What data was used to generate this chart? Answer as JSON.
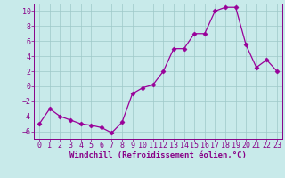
{
  "x": [
    0,
    1,
    2,
    3,
    4,
    5,
    6,
    7,
    8,
    9,
    10,
    11,
    12,
    13,
    14,
    15,
    16,
    17,
    18,
    19,
    20,
    21,
    22,
    23
  ],
  "y": [
    -5.0,
    -3.0,
    -4.0,
    -4.5,
    -5.0,
    -5.2,
    -5.5,
    -6.2,
    -4.8,
    -1.0,
    -0.2,
    0.2,
    2.0,
    5.0,
    5.0,
    7.0,
    7.0,
    10.0,
    10.5,
    10.5,
    5.5,
    2.5,
    3.5,
    2.0
  ],
  "line_color": "#990099",
  "marker": "D",
  "marker_size": 2.5,
  "background_color": "#c8eaea",
  "grid_color": "#9ec8c8",
  "xlabel": "Windchill (Refroidissement éolien,°C)",
  "ylim": [
    -7,
    11
  ],
  "yticks": [
    -6,
    -4,
    -2,
    0,
    2,
    4,
    6,
    8,
    10
  ],
  "xlim": [
    -0.5,
    23.5
  ],
  "xticks": [
    0,
    1,
    2,
    3,
    4,
    5,
    6,
    7,
    8,
    9,
    10,
    11,
    12,
    13,
    14,
    15,
    16,
    17,
    18,
    19,
    20,
    21,
    22,
    23
  ],
  "tick_color": "#880088",
  "label_color": "#880088",
  "label_fontsize": 6.5,
  "tick_fontsize": 6.0,
  "spine_color": "#880088"
}
